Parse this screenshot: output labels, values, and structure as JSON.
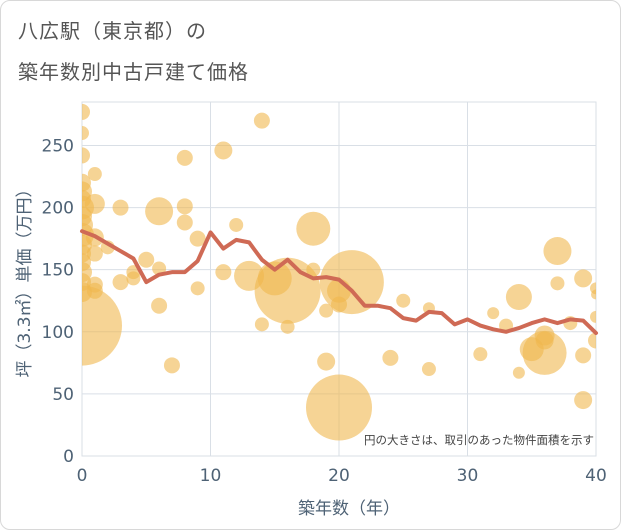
{
  "title_line1": "八広駅（東京都）の",
  "title_line2": "築年数別中古戸建て価格",
  "chart_data": {
    "type": "scatter",
    "xlabel": "築年数（年）",
    "ylabel": "坪（3.3㎡）単価（万円）",
    "xlim": [
      0,
      40
    ],
    "ylim": [
      0,
      285
    ],
    "xticks": [
      0,
      10,
      20,
      30,
      40
    ],
    "yticks": [
      0,
      50,
      100,
      150,
      200,
      250
    ],
    "grid": true,
    "annotation": "円の大きさは、取引のあった物件面積を示す",
    "colors": {
      "bubble": "#f0b74f",
      "line": "#cf6a55",
      "grid": "#d9dfe6",
      "axis_text": "#4e6275"
    },
    "bubbles": [
      {
        "x": 0,
        "y": 277,
        "s": 8
      },
      {
        "x": 0,
        "y": 260,
        "s": 7
      },
      {
        "x": 0,
        "y": 242,
        "s": 8
      },
      {
        "x": 0,
        "y": 220,
        "s": 9
      },
      {
        "x": 0,
        "y": 213,
        "s": 10
      },
      {
        "x": 0,
        "y": 207,
        "s": 9
      },
      {
        "x": 0,
        "y": 200,
        "s": 12
      },
      {
        "x": 0,
        "y": 193,
        "s": 10
      },
      {
        "x": 0,
        "y": 186,
        "s": 11
      },
      {
        "x": 0,
        "y": 178,
        "s": 12
      },
      {
        "x": 0,
        "y": 170,
        "s": 10
      },
      {
        "x": 0,
        "y": 163,
        "s": 9
      },
      {
        "x": 0,
        "y": 156,
        "s": 9
      },
      {
        "x": 0,
        "y": 148,
        "s": 10
      },
      {
        "x": 0,
        "y": 140,
        "s": 9
      },
      {
        "x": 0,
        "y": 132,
        "s": 10
      },
      {
        "x": 0,
        "y": 105,
        "s": 40
      },
      {
        "x": 1,
        "y": 227,
        "s": 7
      },
      {
        "x": 1,
        "y": 203,
        "s": 10
      },
      {
        "x": 1,
        "y": 176,
        "s": 9
      },
      {
        "x": 1,
        "y": 163,
        "s": 8
      },
      {
        "x": 1,
        "y": 138,
        "s": 8
      },
      {
        "x": 1,
        "y": 133,
        "s": 8
      },
      {
        "x": 2,
        "y": 168,
        "s": 7
      },
      {
        "x": 3,
        "y": 200,
        "s": 8
      },
      {
        "x": 3,
        "y": 140,
        "s": 8
      },
      {
        "x": 4,
        "y": 148,
        "s": 7
      },
      {
        "x": 4,
        "y": 143,
        "s": 7
      },
      {
        "x": 5,
        "y": 158,
        "s": 8
      },
      {
        "x": 6,
        "y": 197,
        "s": 14
      },
      {
        "x": 6,
        "y": 151,
        "s": 7
      },
      {
        "x": 6,
        "y": 121,
        "s": 8
      },
      {
        "x": 7,
        "y": 73,
        "s": 8
      },
      {
        "x": 8,
        "y": 240,
        "s": 8
      },
      {
        "x": 8,
        "y": 201,
        "s": 8
      },
      {
        "x": 8,
        "y": 188,
        "s": 8
      },
      {
        "x": 9,
        "y": 175,
        "s": 8
      },
      {
        "x": 9,
        "y": 135,
        "s": 7
      },
      {
        "x": 11,
        "y": 246,
        "s": 9
      },
      {
        "x": 11,
        "y": 148,
        "s": 8
      },
      {
        "x": 12,
        "y": 186,
        "s": 7
      },
      {
        "x": 13,
        "y": 145,
        "s": 15
      },
      {
        "x": 14,
        "y": 270,
        "s": 8
      },
      {
        "x": 14,
        "y": 106,
        "s": 7
      },
      {
        "x": 15,
        "y": 143,
        "s": 17
      },
      {
        "x": 16,
        "y": 133,
        "s": 33
      },
      {
        "x": 16,
        "y": 104,
        "s": 7
      },
      {
        "x": 18,
        "y": 183,
        "s": 17
      },
      {
        "x": 18,
        "y": 150,
        "s": 7
      },
      {
        "x": 19,
        "y": 117,
        "s": 7
      },
      {
        "x": 19,
        "y": 76,
        "s": 9
      },
      {
        "x": 20,
        "y": 133,
        "s": 12
      },
      {
        "x": 20,
        "y": 122,
        "s": 8
      },
      {
        "x": 20,
        "y": 39,
        "s": 33
      },
      {
        "x": 21,
        "y": 140,
        "s": 32
      },
      {
        "x": 24,
        "y": 79,
        "s": 8
      },
      {
        "x": 25,
        "y": 125,
        "s": 7
      },
      {
        "x": 27,
        "y": 119,
        "s": 6
      },
      {
        "x": 27,
        "y": 70,
        "s": 7
      },
      {
        "x": 31,
        "y": 82,
        "s": 7
      },
      {
        "x": 32,
        "y": 115,
        "s": 6
      },
      {
        "x": 33,
        "y": 105,
        "s": 7
      },
      {
        "x": 34,
        "y": 128,
        "s": 13
      },
      {
        "x": 34,
        "y": 67,
        "s": 6
      },
      {
        "x": 35,
        "y": 86,
        "s": 12
      },
      {
        "x": 36,
        "y": 97,
        "s": 10
      },
      {
        "x": 36,
        "y": 93,
        "s": 9
      },
      {
        "x": 36,
        "y": 83,
        "s": 22
      },
      {
        "x": 37,
        "y": 165,
        "s": 14
      },
      {
        "x": 37,
        "y": 139,
        "s": 7
      },
      {
        "x": 38,
        "y": 107,
        "s": 7
      },
      {
        "x": 39,
        "y": 143,
        "s": 9
      },
      {
        "x": 39,
        "y": 81,
        "s": 8
      },
      {
        "x": 39,
        "y": 45,
        "s": 9
      },
      {
        "x": 40,
        "y": 135,
        "s": 6
      },
      {
        "x": 40,
        "y": 130,
        "s": 5
      },
      {
        "x": 40,
        "y": 112,
        "s": 6
      },
      {
        "x": 40,
        "y": 93,
        "s": 8
      }
    ],
    "series": [
      {
        "x": [
          0,
          1,
          2,
          3,
          4,
          5,
          6,
          7,
          8,
          9,
          10,
          11,
          12,
          13,
          14,
          15,
          16,
          17,
          18,
          19,
          20,
          21,
          22,
          23,
          24,
          25,
          26,
          27,
          28,
          29,
          30,
          31,
          32,
          33,
          34,
          35,
          36,
          37,
          38,
          39,
          40
        ],
        "values": [
          181,
          177,
          171,
          165,
          159,
          140,
          146,
          148,
          148,
          157,
          180,
          167,
          174,
          172,
          158,
          150,
          158,
          148,
          143,
          144,
          142,
          133,
          121,
          121,
          119,
          111,
          109,
          116,
          115,
          106,
          110,
          105,
          102,
          100,
          103,
          107,
          110,
          107,
          110,
          109,
          99
        ]
      }
    ]
  }
}
